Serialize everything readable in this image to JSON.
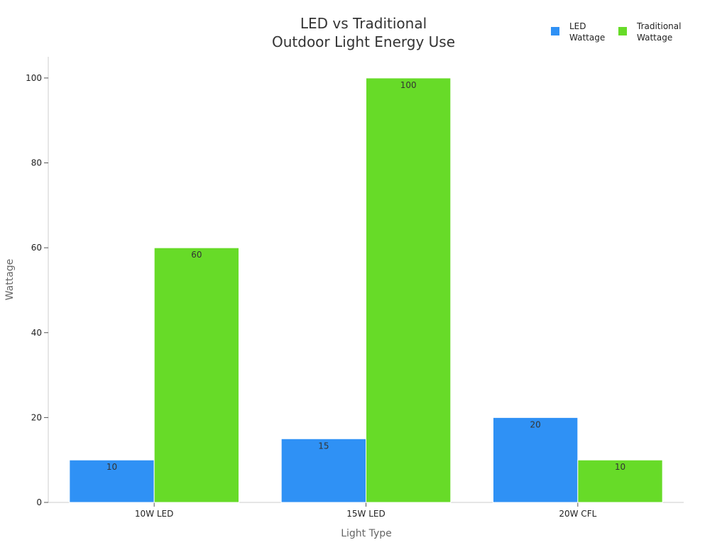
{
  "chart_data": {
    "type": "bar",
    "title": "LED vs Traditional\nOutdoor Light Energy Use",
    "xlabel": "Light Type",
    "ylabel": "Wattage",
    "categories": [
      "10W LED",
      "15W LED",
      "20W CFL"
    ],
    "series": [
      {
        "name": "LED\nWattage",
        "values": [
          10,
          15,
          20
        ],
        "color": "#2f91f5"
      },
      {
        "name": "Traditional\nWattage",
        "values": [
          60,
          100,
          10
        ],
        "color": "#67db28"
      }
    ],
    "ylim": [
      0,
      105
    ],
    "yticks": [
      0,
      20,
      40,
      60,
      80,
      100
    ],
    "grid": false,
    "legend_position": "top-right",
    "data_labels": true
  }
}
